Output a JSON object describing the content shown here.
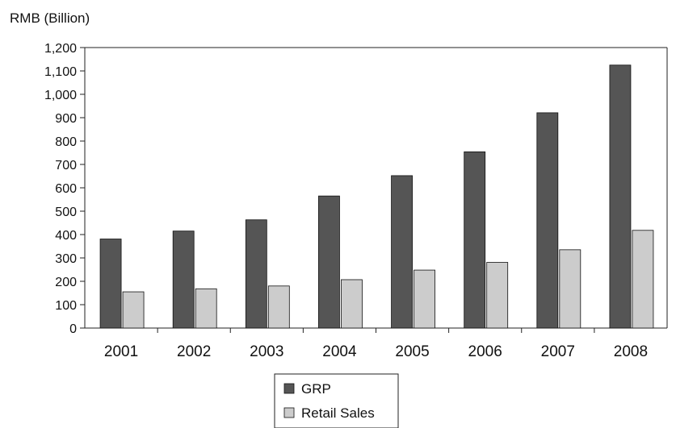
{
  "chart_data": {
    "type": "bar",
    "title": "",
    "unit_label": "RMB (Billion)",
    "xlabel": "",
    "ylabel": "RMB (Billion)",
    "categories": [
      "2001",
      "2002",
      "2003",
      "2004",
      "2005",
      "2006",
      "2007",
      "2008"
    ],
    "series": [
      {
        "name": "GRP",
        "color": "#555555",
        "values": [
          381,
          415,
          463,
          565,
          652,
          754,
          921,
          1125
        ]
      },
      {
        "name": "Retail Sales",
        "color": "#cccccc",
        "values": [
          155,
          168,
          180,
          207,
          248,
          281,
          335,
          418
        ]
      }
    ],
    "ylim": [
      0,
      1200
    ],
    "yticks": [
      0,
      100,
      200,
      300,
      400,
      500,
      600,
      700,
      800,
      900,
      1000,
      1100,
      1200
    ],
    "ytick_labels": [
      "0",
      "100",
      "200",
      "300",
      "400",
      "500",
      "600",
      "700",
      "800",
      "900",
      "1,000",
      "1,100",
      "1,200"
    ],
    "grid": false,
    "legend_position": "bottom"
  }
}
